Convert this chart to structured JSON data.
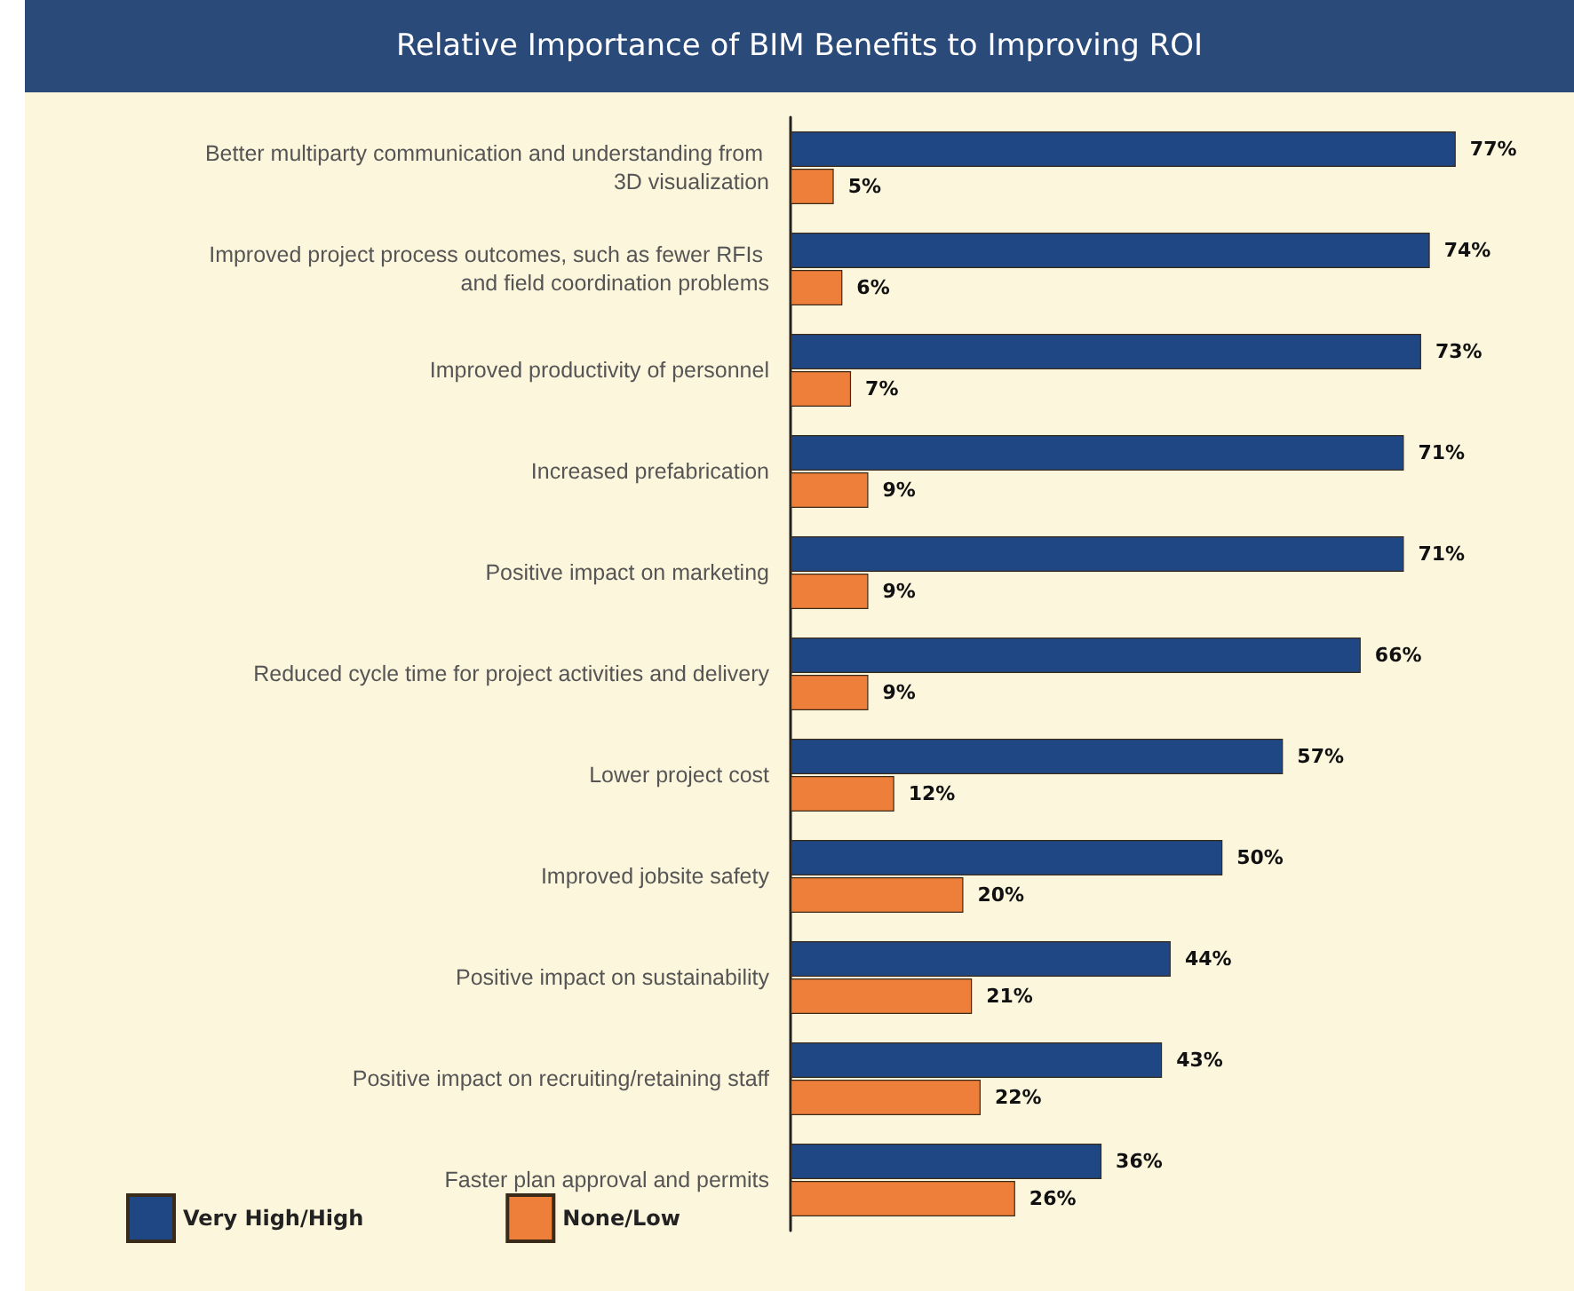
{
  "chart_data": {
    "type": "bar",
    "orientation": "horizontal",
    "title": "Relative Importance of BIM Benefits to Improving ROI",
    "categories": [
      "Better multiparty communication and understanding from 3D visualization",
      "Improved project process outcomes, such as fewer RFIs and field coordination problems",
      "Improved productivity of personnel",
      "Increased prefabrication",
      "Positive impact on marketing",
      "Reduced cycle time for project activities and delivery",
      "Lower project cost",
      "Improved jobsite safety",
      "Positive impact on sustainability",
      "Positive impact on recruiting/retaining staff",
      "Faster plan approval and permits"
    ],
    "series": [
      {
        "name": "Very High/High",
        "color": "#1f4783",
        "values": [
          77,
          74,
          73,
          71,
          71,
          66,
          57,
          50,
          44,
          43,
          36
        ],
        "value_labels": [
          "77%",
          "74%",
          "73%",
          "71%",
          "71%",
          "66%",
          "57%",
          "50%",
          "44%",
          "43%",
          "36%"
        ]
      },
      {
        "name": "None/Low",
        "color": "#ee7f3a",
        "values": [
          5,
          6,
          7,
          9,
          9,
          9,
          12,
          20,
          21,
          22,
          26
        ],
        "value_labels": [
          "5%",
          "6%",
          "7%",
          "9%",
          "9%",
          "9%",
          "12%",
          "20%",
          "21%",
          "22%",
          "26%"
        ]
      }
    ],
    "tick_labels": "y",
    "legend": "bottom left"
  }
}
